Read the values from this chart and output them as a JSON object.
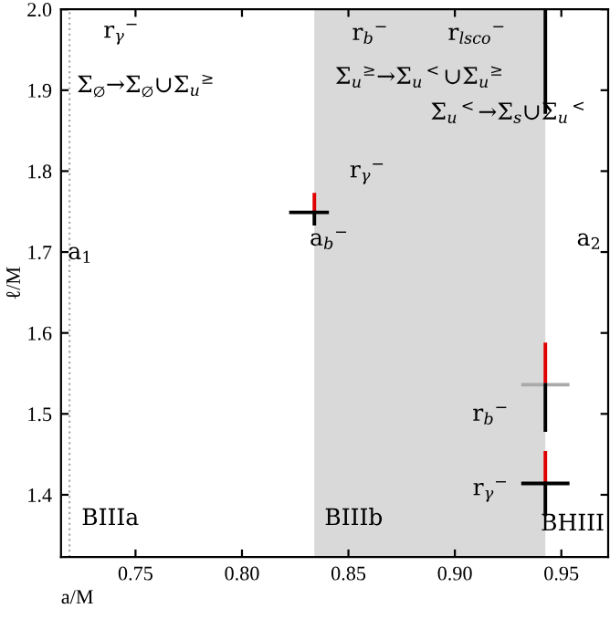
{
  "chart_data": {
    "type": "line",
    "xlabel": "a/M",
    "ylabel": "ℓ/M",
    "xlim": [
      0.715,
      0.972
    ],
    "ylim": [
      1.323,
      2.0
    ],
    "xticks": [
      0.75,
      {
        "value": 0.8,
        "label": "0.80"
      },
      0.85,
      {
        "value": 0.9,
        "label": "0.90"
      },
      0.95
    ],
    "yticks": [
      1.4,
      1.5,
      1.6,
      1.7,
      1.8,
      1.9,
      {
        "value": 2.0,
        "label": "2.0"
      }
    ],
    "grid": false,
    "legend": false,
    "series": [
      {
        "color": "#e00000",
        "x": [
          0.834,
          0.834
        ],
        "values": [
          1.749,
          1.771
        ]
      },
      {
        "color": "#000000",
        "x": [
          0.834,
          0.834
        ],
        "values": [
          1.735,
          1.749
        ]
      },
      {
        "color": "#000000",
        "x": [
          0.823,
          0.84
        ],
        "values": [
          1.749,
          1.749
        ]
      },
      {
        "color": "#000000",
        "x": [
          0.9425,
          0.9425
        ],
        "values": [
          2.0,
          1.873
        ]
      },
      {
        "color": "#e00000",
        "x": [
          0.9425,
          0.9425
        ],
        "values": [
          1.586,
          1.536
        ]
      },
      {
        "color": "#aaaaaa",
        "x": [
          0.932,
          0.953
        ],
        "values": [
          1.536,
          1.536
        ]
      },
      {
        "color": "#000000",
        "x": [
          0.9425,
          0.9425
        ],
        "values": [
          1.536,
          1.48
        ]
      },
      {
        "color": "#e00000",
        "x": [
          0.9425,
          0.9425
        ],
        "values": [
          1.452,
          1.414
        ]
      },
      {
        "color": "#000000",
        "x": [
          0.932,
          0.953
        ],
        "values": [
          1.414,
          1.414
        ]
      },
      {
        "color": "#000000",
        "x": [
          0.9425,
          0.9425
        ],
        "values": [
          1.414,
          1.376
        ]
      }
    ],
    "ref_lines": [
      {
        "axis": "x",
        "value": 0.719,
        "color": "#aaaaaa",
        "line_style": "dotted"
      }
    ],
    "bands": [
      {
        "axis": "x",
        "from": 0.834,
        "to": 0.9425,
        "color": "#d9d9d9"
      }
    ],
    "annotations": [
      "r$_{γ}$$^{−}$",
      "Σ$_{∅}$→Σ$_{∅}$∪Σ$_{u}$$^{≥}$",
      "a$_{1}$",
      "r$_{b}$$^{−}$",
      "r$_{lsco}$$^{−}$",
      "Σ$_{u}$$^{≥}$→Σ$_{u}$$^{<}$∪Σ$_{u}$$^{≥}$",
      "Σ$_{u}$$^{<}$→Σ$_{s}$∪Σ$_{u}$$^{<}$",
      "r$_{γ}$$^{−}$",
      "a$_{b}$$^{−}$",
      "a$_{2}$",
      "r$_{b}$$^{−}$",
      "r$_{γ}$$^{−}$",
      "BIIIa",
      "BIIIb",
      "BHIII"
    ]
  }
}
